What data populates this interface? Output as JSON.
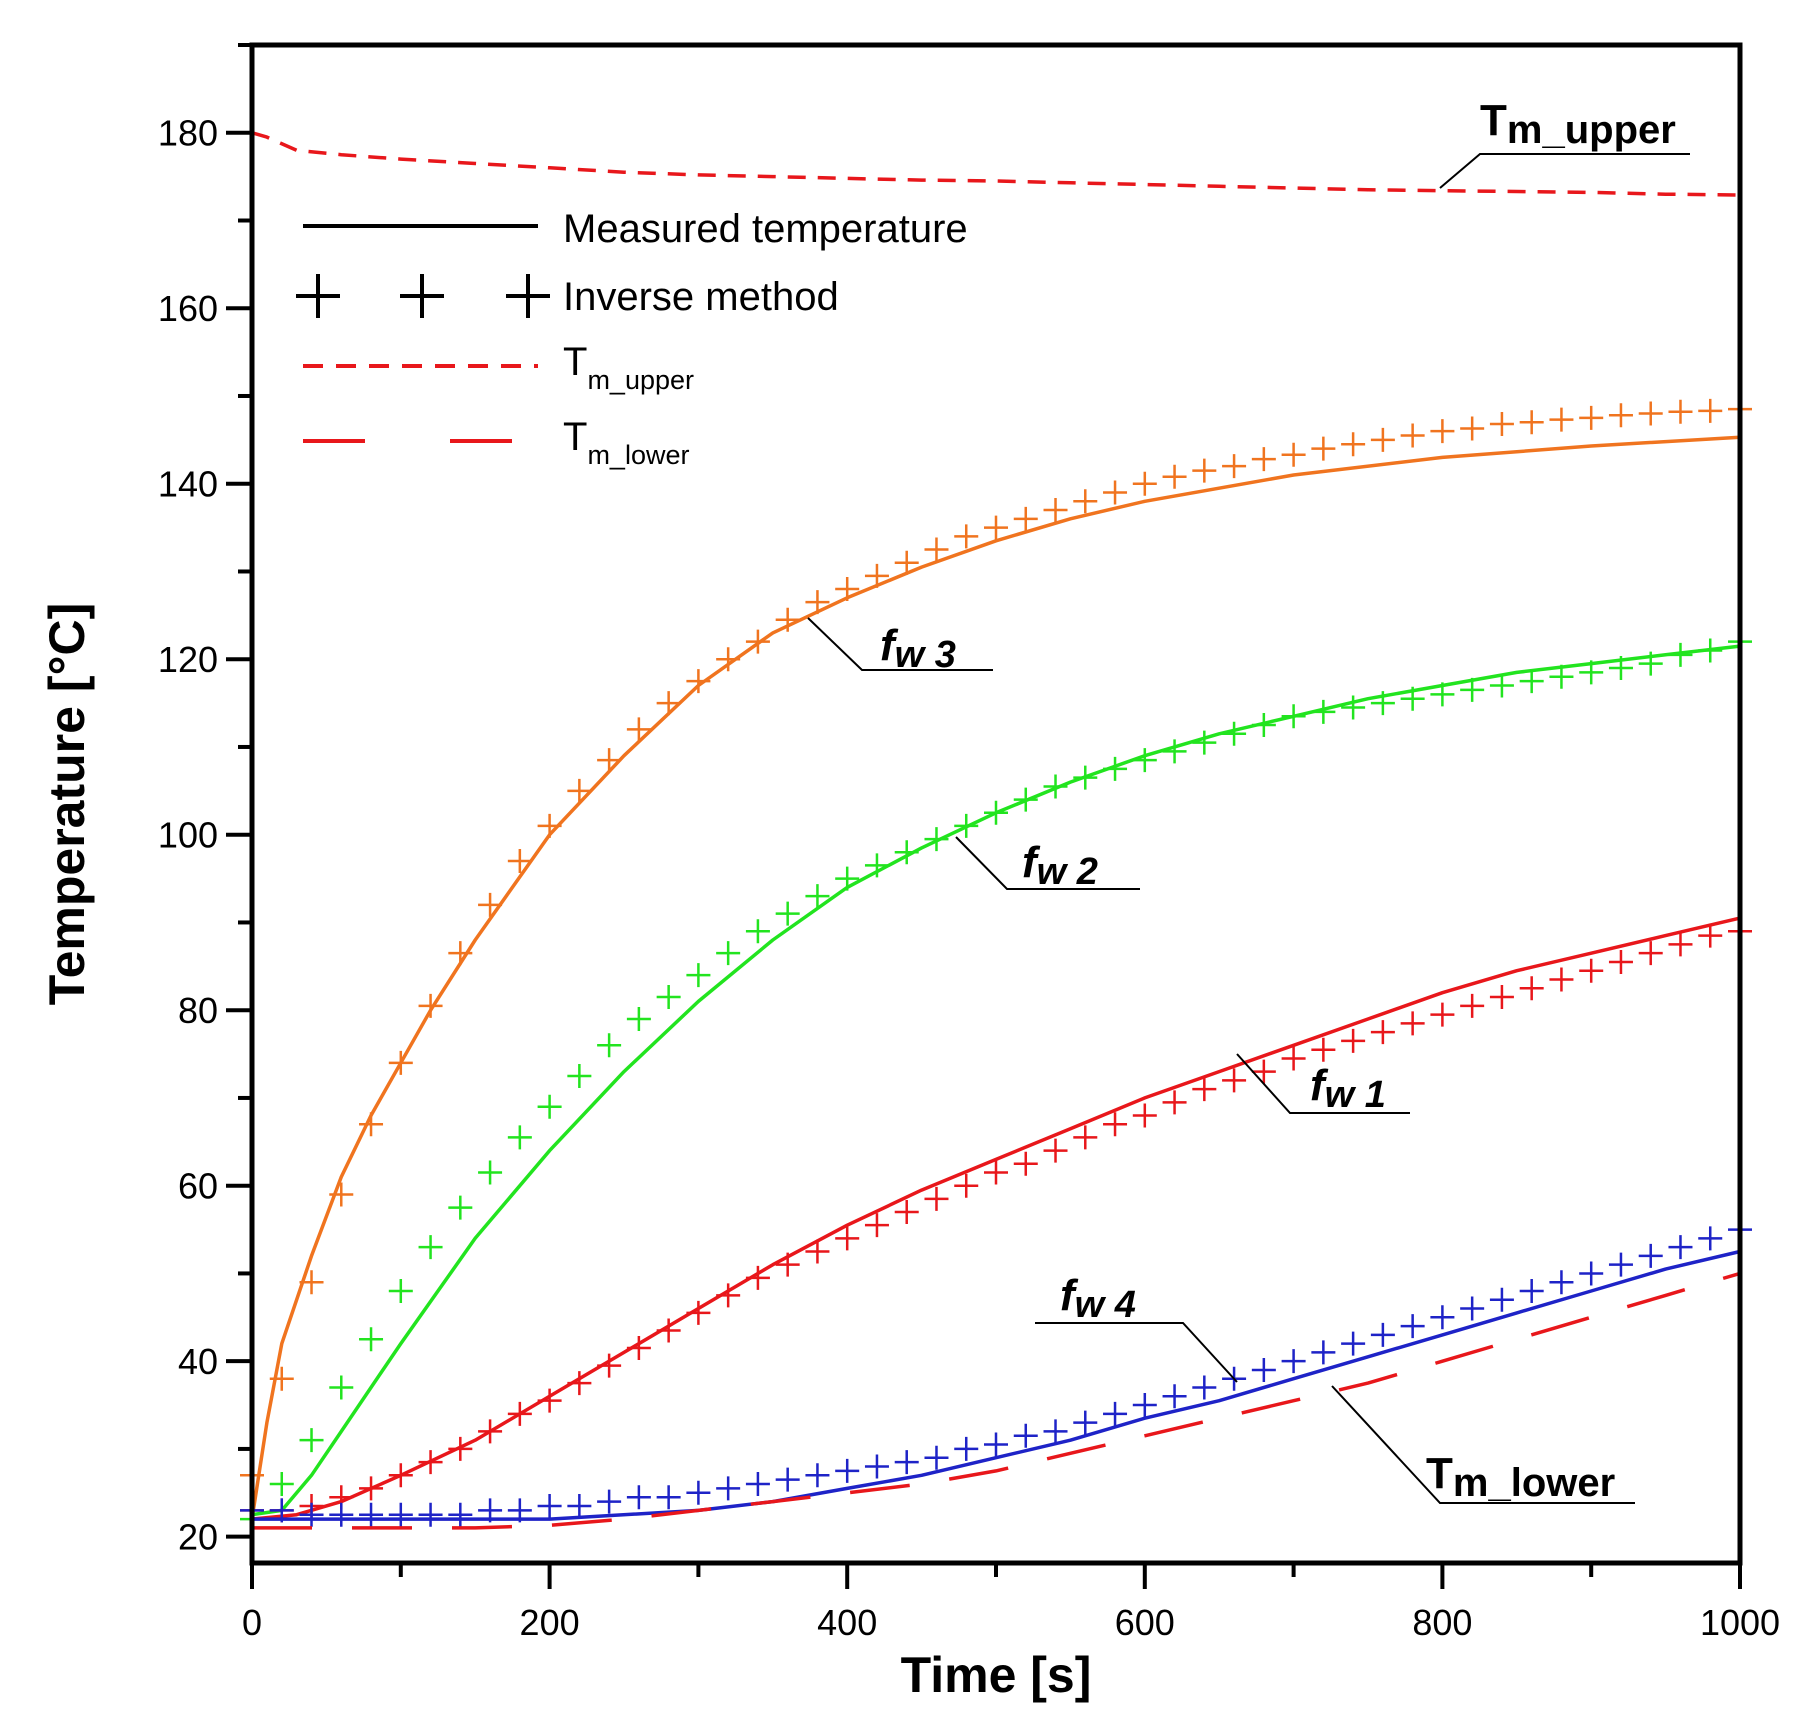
{
  "chart_data": {
    "type": "line",
    "title": "",
    "xlabel": "Time [s]",
    "ylabel": "Temperature [°C]",
    "xlim": [
      0,
      1000
    ],
    "ylim": [
      17,
      190
    ],
    "x_ticks": [
      0,
      200,
      400,
      600,
      800,
      1000
    ],
    "y_ticks": [
      20,
      40,
      60,
      80,
      100,
      120,
      140,
      160,
      180
    ],
    "grid": false,
    "legend_position": "upper-left",
    "legend": {
      "measured": "Measured temperature",
      "inverse": "Inverse method",
      "upper_main": "T",
      "upper_sub": "m_upper",
      "lower_main": "T",
      "lower_sub": "m_lower"
    },
    "colors": {
      "fw1": "#e8171b",
      "fw2": "#22e41f",
      "fw3": "#f0741f",
      "fw4": "#1e23c7",
      "tm": "#e8171b"
    },
    "series": [
      {
        "key": "fw3",
        "name": "f_w 3 measured",
        "style": "solid",
        "x": [
          0,
          10,
          20,
          40,
          60,
          80,
          100,
          120,
          150,
          200,
          250,
          300,
          350,
          400,
          450,
          500,
          550,
          600,
          700,
          800,
          900,
          1000
        ],
        "y": [
          22,
          33,
          42,
          52,
          61,
          68,
          74,
          80,
          88,
          100,
          109,
          117,
          123,
          127,
          130.5,
          133.5,
          136,
          138,
          141,
          143,
          144.3,
          145.3
        ]
      },
      {
        "key": "fw3",
        "name": "f_w 3 inverse",
        "style": "markers",
        "x": [
          0,
          20,
          40,
          60,
          80,
          100,
          120,
          140,
          160,
          180,
          200,
          220,
          240,
          260,
          280,
          300,
          320,
          340,
          360,
          380,
          400,
          420,
          440,
          460,
          480,
          500,
          520,
          540,
          560,
          580,
          600,
          620,
          640,
          660,
          680,
          700,
          720,
          740,
          760,
          780,
          800,
          820,
          840,
          860,
          880,
          900,
          920,
          940,
          960,
          980,
          1000
        ],
        "y": [
          27,
          38,
          49,
          59,
          67,
          74,
          80.5,
          86.5,
          92,
          97,
          101,
          105,
          108.5,
          112,
          115,
          117.5,
          120,
          122,
          124.5,
          126.5,
          128,
          129.5,
          131,
          132.5,
          134,
          135,
          136,
          137,
          138,
          139,
          140,
          140.8,
          141.5,
          142,
          142.8,
          143.3,
          144,
          144.5,
          145,
          145.5,
          146,
          146.3,
          146.8,
          147,
          147.3,
          147.5,
          147.8,
          148,
          148.2,
          148.3,
          148.5
        ]
      },
      {
        "key": "fw2",
        "name": "f_w 2 measured",
        "style": "solid",
        "x": [
          0,
          20,
          40,
          60,
          80,
          100,
          150,
          200,
          250,
          300,
          350,
          400,
          450,
          500,
          550,
          600,
          650,
          700,
          750,
          800,
          850,
          900,
          950,
          1000
        ],
        "y": [
          22.5,
          23,
          27,
          32,
          37,
          42,
          54,
          64,
          73,
          81,
          88,
          94,
          98.5,
          102.5,
          106,
          109,
          111.5,
          113.5,
          115.5,
          117,
          118.5,
          119.5,
          120.5,
          121.5
        ]
      },
      {
        "key": "fw2",
        "name": "f_w 2 inverse",
        "style": "markers",
        "x": [
          0,
          20,
          40,
          60,
          80,
          100,
          120,
          140,
          160,
          180,
          200,
          220,
          240,
          260,
          280,
          300,
          320,
          340,
          360,
          380,
          400,
          420,
          440,
          460,
          480,
          500,
          520,
          540,
          560,
          580,
          600,
          620,
          640,
          660,
          680,
          700,
          720,
          740,
          760,
          780,
          800,
          820,
          840,
          860,
          880,
          900,
          920,
          940,
          960,
          980,
          1000
        ],
        "y": [
          22,
          26,
          31,
          37,
          42.5,
          48,
          53,
          57.5,
          61.5,
          65.5,
          69,
          72.5,
          76,
          79,
          81.5,
          84,
          86.5,
          89,
          91,
          93,
          95,
          96.5,
          98,
          99.5,
          101,
          102.5,
          104,
          105.5,
          106.5,
          107.5,
          108.5,
          109.5,
          110.5,
          111.5,
          112.5,
          113.5,
          114,
          114.5,
          115,
          115.5,
          116,
          116.5,
          117,
          117.5,
          118,
          118.5,
          119,
          119.5,
          120.5,
          121,
          122
        ]
      },
      {
        "key": "fw1",
        "name": "f_w 1 measured",
        "style": "solid",
        "x": [
          0,
          30,
          60,
          100,
          150,
          200,
          250,
          300,
          350,
          400,
          450,
          500,
          550,
          600,
          650,
          700,
          750,
          800,
          850,
          900,
          950,
          1000
        ],
        "y": [
          22,
          22.5,
          24,
          27,
          31,
          36,
          41,
          46,
          51,
          55.5,
          59.5,
          63,
          66.5,
          70,
          73,
          76,
          79,
          82,
          84.5,
          86.5,
          88.5,
          90.5
        ]
      },
      {
        "key": "fw1",
        "name": "f_w 1 inverse",
        "style": "markers",
        "x": [
          0,
          20,
          40,
          60,
          80,
          100,
          120,
          140,
          160,
          180,
          200,
          220,
          240,
          260,
          280,
          300,
          320,
          340,
          360,
          380,
          400,
          420,
          440,
          460,
          480,
          500,
          520,
          540,
          560,
          580,
          600,
          620,
          640,
          660,
          680,
          700,
          720,
          740,
          760,
          780,
          800,
          820,
          840,
          860,
          880,
          900,
          920,
          940,
          960,
          980,
          1000
        ],
        "y": [
          23,
          23,
          23.5,
          24.5,
          25.5,
          27,
          28.5,
          30,
          32,
          34,
          35.5,
          37.5,
          39.5,
          41.5,
          43.5,
          45.5,
          47.5,
          49.5,
          51,
          52.5,
          54,
          55.5,
          57,
          58.5,
          60,
          61.5,
          62.5,
          64,
          65.5,
          67,
          68,
          69.5,
          71,
          72,
          73,
          74.5,
          75.5,
          76.5,
          77.5,
          78.5,
          79.5,
          80.5,
          81.5,
          82.5,
          83.5,
          84.5,
          85.5,
          86.5,
          87.5,
          88.5,
          89
        ]
      },
      {
        "key": "fw4",
        "name": "f_w 4 measured",
        "style": "solid",
        "x": [
          0,
          100,
          200,
          300,
          350,
          400,
          450,
          500,
          550,
          600,
          650,
          700,
          750,
          800,
          850,
          900,
          950,
          1000
        ],
        "y": [
          22,
          22,
          22,
          23,
          24,
          25.5,
          27,
          29,
          31,
          33.5,
          35.5,
          38,
          40.5,
          43,
          45.5,
          48,
          50.5,
          52.5
        ]
      },
      {
        "key": "fw4",
        "name": "f_w 4 inverse",
        "style": "markers",
        "x": [
          0,
          20,
          40,
          60,
          80,
          100,
          120,
          140,
          160,
          180,
          200,
          220,
          240,
          260,
          280,
          300,
          320,
          340,
          360,
          380,
          400,
          420,
          440,
          460,
          480,
          500,
          520,
          540,
          560,
          580,
          600,
          620,
          640,
          660,
          680,
          700,
          720,
          740,
          760,
          780,
          800,
          820,
          840,
          860,
          880,
          900,
          920,
          940,
          960,
          980,
          1000
        ],
        "y": [
          23,
          23,
          22.5,
          22.5,
          22.5,
          22.5,
          22.5,
          22.5,
          23,
          23,
          23.5,
          23.5,
          24,
          24.5,
          24.5,
          25,
          25.5,
          26,
          26.5,
          27,
          27.5,
          28,
          28.5,
          29,
          30,
          30.5,
          31.5,
          32,
          33,
          34,
          35,
          36,
          37,
          38,
          39,
          40,
          41,
          42,
          43,
          44,
          45,
          46,
          47,
          48,
          49,
          50,
          51,
          52,
          53,
          54,
          55
        ]
      },
      {
        "key": "tm",
        "name": "T_m_upper",
        "style": "dashed",
        "x": [
          0,
          10,
          30,
          60,
          100,
          150,
          200,
          250,
          300,
          350,
          400,
          450,
          500,
          550,
          600,
          650,
          700,
          750,
          800,
          850,
          900,
          950,
          1000
        ],
        "y": [
          180,
          179.5,
          178,
          177.5,
          177,
          176.5,
          176,
          175.5,
          175.2,
          175,
          174.8,
          174.6,
          174.5,
          174.3,
          174.1,
          173.9,
          173.7,
          173.5,
          173.4,
          173.3,
          173.2,
          173,
          172.9
        ]
      },
      {
        "key": "tm",
        "name": "T_m_lower",
        "style": "longdash",
        "x": [
          0,
          50,
          100,
          150,
          200,
          250,
          300,
          350,
          400,
          450,
          500,
          550,
          600,
          650,
          700,
          750,
          800,
          850,
          900,
          950,
          1000
        ],
        "y": [
          21,
          21,
          21,
          21,
          21.3,
          22,
          23,
          24,
          25,
          26,
          27.5,
          29.5,
          31.5,
          33.5,
          35.5,
          37.5,
          40,
          42.5,
          45,
          47.5,
          50
        ]
      }
    ],
    "annotations": [
      {
        "key": "fw3",
        "base": "f",
        "sub": "w 3"
      },
      {
        "key": "fw2",
        "base": "f",
        "sub": "w 2"
      },
      {
        "key": "fw1",
        "base": "f",
        "sub": "w 1"
      },
      {
        "key": "fw4",
        "base": "f",
        "sub": "w 4"
      },
      {
        "key": "upper",
        "base": "T",
        "sub": "m_upper"
      },
      {
        "key": "lower",
        "base": "T",
        "sub": "m_lower"
      }
    ]
  }
}
